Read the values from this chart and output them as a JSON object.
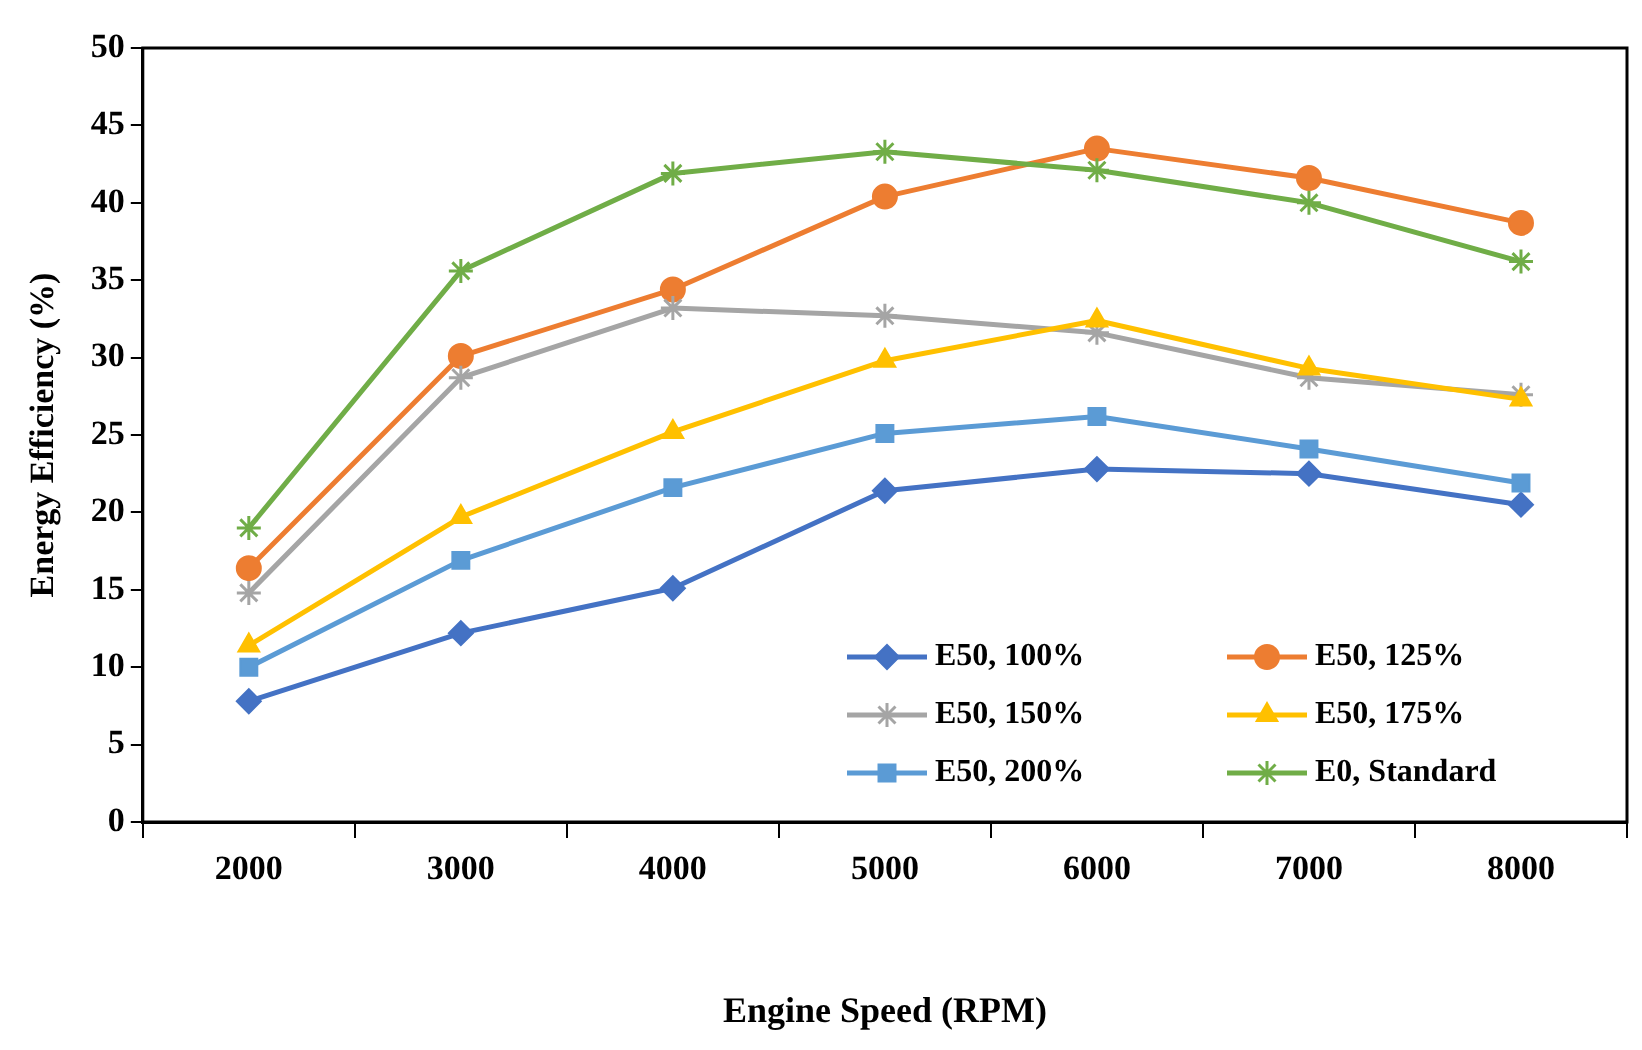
{
  "chart_data": {
    "type": "line",
    "xlabel": "Engine Speed (RPM)",
    "ylabel": "Energy Efficiency (%)",
    "categories": [
      "2000",
      "3000",
      "4000",
      "5000",
      "6000",
      "7000",
      "8000"
    ],
    "ylim": [
      0,
      50
    ],
    "yticks": [
      0,
      5,
      10,
      15,
      20,
      25,
      30,
      35,
      40,
      45,
      50
    ],
    "grid": false,
    "legend": "bottom right",
    "line_style": "solid",
    "series": [
      {
        "name": "E50, 100%",
        "color": "#4472c4",
        "marker": "diamond",
        "values": [
          7.8,
          12.2,
          15.1,
          21.4,
          22.8,
          22.5,
          20.5
        ]
      },
      {
        "name": "E50, 125%",
        "color": "#ed7d31",
        "marker": "circle",
        "values": [
          16.4,
          30.1,
          34.4,
          40.4,
          43.5,
          41.6,
          38.7
        ]
      },
      {
        "name": "E50, 150%",
        "color": "#a5a5a5",
        "marker": "cross",
        "values": [
          14.8,
          28.7,
          33.2,
          32.7,
          31.6,
          28.7,
          27.6
        ]
      },
      {
        "name": "E50, 175%",
        "color": "#ffc000",
        "marker": "triangle",
        "values": [
          11.4,
          19.7,
          25.2,
          29.8,
          32.4,
          29.3,
          27.3
        ]
      },
      {
        "name": "E50, 200%",
        "color": "#5b9bd5",
        "marker": "square",
        "values": [
          10.0,
          16.9,
          21.6,
          25.1,
          26.2,
          24.1,
          21.9
        ]
      },
      {
        "name": "E0, Standard",
        "color": "#70ad47",
        "marker": "cross",
        "values": [
          19.0,
          35.6,
          41.9,
          43.3,
          42.1,
          40.0,
          36.2
        ]
      }
    ]
  }
}
